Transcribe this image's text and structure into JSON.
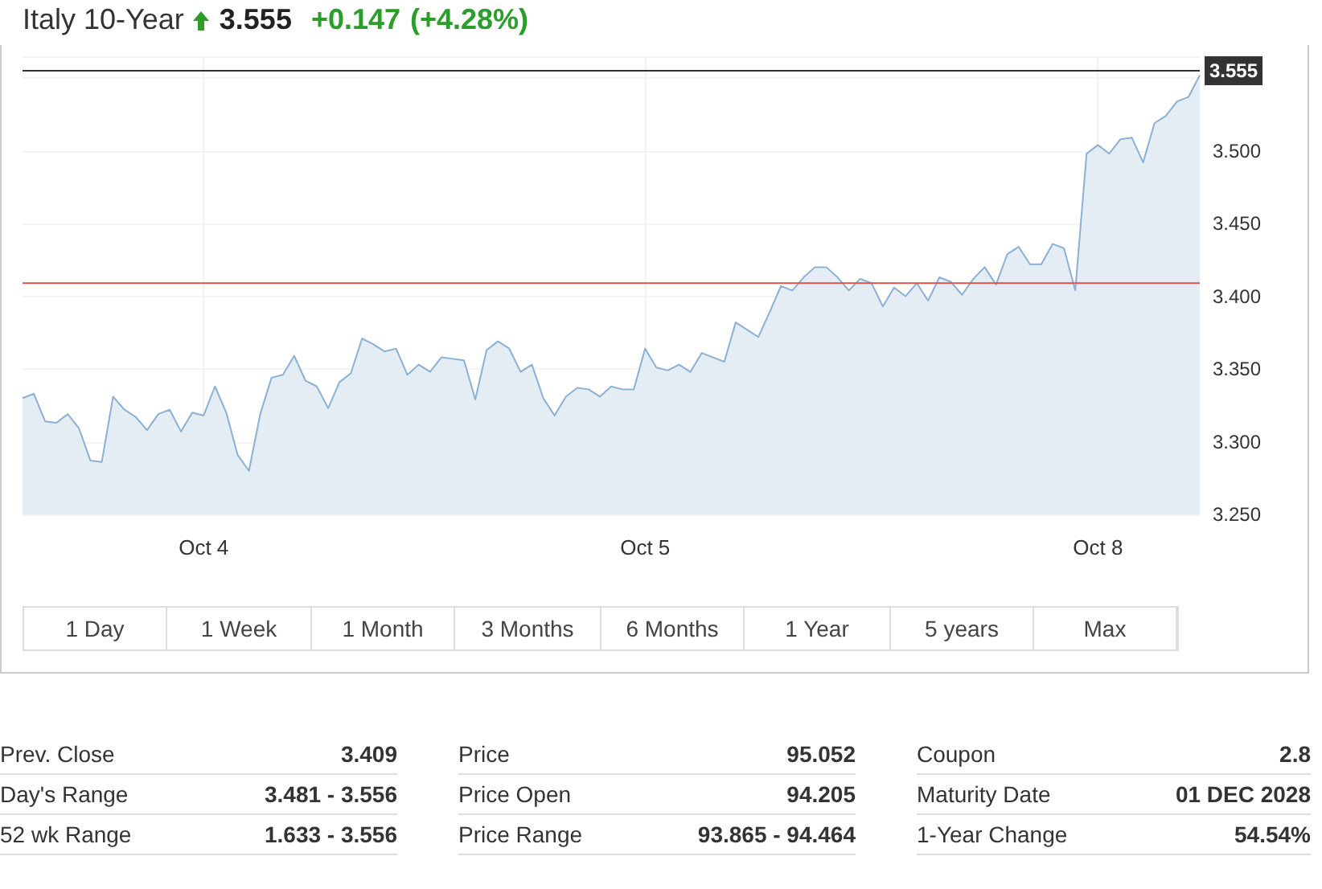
{
  "chart_data": {
    "type": "area",
    "title": "Italy 10-Year",
    "annotations": [
      "3.555",
      "+0.147",
      "(+4.28%)",
      "1 Day",
      "1 Week",
      "1 Month",
      "3 Months",
      "6 Months",
      "1 Year",
      "5 years",
      "Max",
      "Prev. Close",
      "3.409",
      "Day's Range",
      "3.481 - 3.556",
      "52 wk Range",
      "1.633 - 3.556",
      "Price",
      "95.052",
      "Price Open",
      "94.205",
      "Price Range",
      "93.865 - 94.464",
      "Coupon",
      "2.8",
      "Maturity Date",
      "01 DEC 2028",
      "1-Year Change",
      "54.54%"
    ],
    "categories": [
      null,
      null,
      null,
      null,
      null,
      null,
      null,
      null,
      null,
      null,
      null,
      null,
      null,
      null,
      null,
      null,
      "Oct 4",
      null,
      null,
      null,
      null,
      null,
      null,
      null,
      null,
      null,
      null,
      null,
      null,
      null,
      null,
      null,
      null,
      null,
      null,
      null,
      null,
      null,
      null,
      null,
      null,
      null,
      null,
      null,
      null,
      null,
      null,
      null,
      null,
      null,
      null,
      null,
      null,
      null,
      null,
      "Oct 5",
      null,
      null,
      null,
      null,
      null,
      null,
      null,
      null,
      null,
      null,
      null,
      null,
      null,
      null,
      null,
      null,
      null,
      null,
      null,
      null,
      null,
      null,
      null,
      null,
      null,
      null,
      null,
      null,
      null,
      null,
      null,
      null,
      null,
      null,
      null,
      null,
      null,
      null,
      null,
      "Oct 8",
      null,
      null,
      null,
      null,
      null,
      null,
      null,
      null,
      null
    ],
    "series": [
      {
        "color": "#8cb0d4",
        "values": [
          3.33,
          3.333,
          3.314,
          3.313,
          3.319,
          3.309,
          3.287,
          3.286,
          3.331,
          3.322,
          3.317,
          3.308,
          3.319,
          3.322,
          3.307,
          3.32,
          3.318,
          3.338,
          3.32,
          3.291,
          3.28,
          3.319,
          3.344,
          3.346,
          3.359,
          3.342,
          3.338,
          3.323,
          3.341,
          3.347,
          3.371,
          3.367,
          3.362,
          3.364,
          3.346,
          3.353,
          3.348,
          3.358,
          3.357,
          3.356,
          3.329,
          3.363,
          3.369,
          3.364,
          3.348,
          3.353,
          3.33,
          3.318,
          3.331,
          3.337,
          3.336,
          3.331,
          3.338,
          3.336,
          3.336,
          3.364,
          3.351,
          3.349,
          3.353,
          3.348,
          3.361,
          3.358,
          3.355,
          3.382,
          3.377,
          3.372,
          3.389,
          3.407,
          3.404,
          3.413,
          3.42,
          3.42,
          3.413,
          3.404,
          3.412,
          3.409,
          3.393,
          3.406,
          3.4,
          3.409,
          3.397,
          3.413,
          3.41,
          3.401,
          3.412,
          3.42,
          3.408,
          3.429,
          3.434,
          3.422,
          3.422,
          3.436,
          3.433,
          3.404,
          3.498,
          3.504,
          3.498,
          3.508,
          3.509,
          3.492,
          3.519,
          3.524,
          3.534,
          3.537,
          3.552
        ]
      }
    ],
    "ylim": [
      3.25,
      3.565
    ],
    "yticks": [
      {
        "value": 3.25,
        "label": "3.250"
      },
      {
        "value": 3.3,
        "label": "3.300"
      },
      {
        "value": 3.35,
        "label": "3.350"
      },
      {
        "value": 3.4,
        "label": "3.400"
      },
      {
        "value": 3.45,
        "label": "3.450"
      },
      {
        "value": 3.5,
        "label": "3.500"
      }
    ],
    "ref_lines": [
      {
        "axis": "y",
        "value": 3.555,
        "label": "3.555",
        "color": "#333333"
      },
      {
        "axis": "y",
        "value": 3.409,
        "label": null,
        "color": "#d9534f"
      }
    ],
    "grid": true,
    "marker": "none",
    "line_style": "solid"
  }
}
